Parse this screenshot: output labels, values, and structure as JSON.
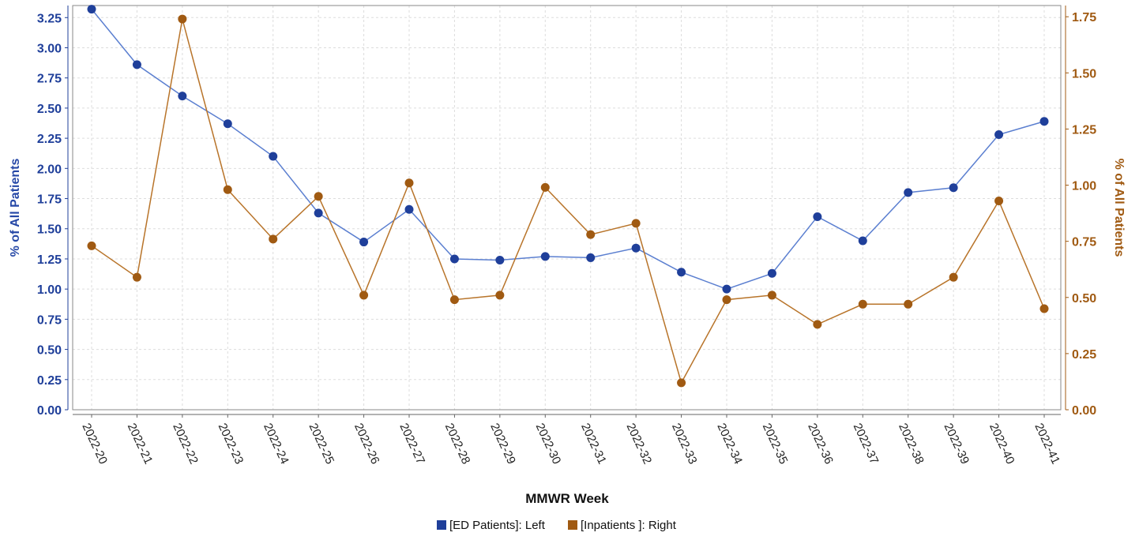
{
  "chart_data": {
    "type": "line",
    "xlabel": "MMWR Week",
    "ylabel_left": "% of All Patients",
    "ylabel_right": "% of All Patients",
    "categories": [
      "2022-20",
      "2022-21",
      "2022-22",
      "2022-23",
      "2022-24",
      "2022-25",
      "2022-26",
      "2022-27",
      "2022-28",
      "2022-29",
      "2022-30",
      "2022-31",
      "2022-32",
      "2022-33",
      "2022-34",
      "2022-35",
      "2022-36",
      "2022-37",
      "2022-38",
      "2022-39",
      "2022-40",
      "2022-41"
    ],
    "left_axis": {
      "ylim": [
        0,
        3.35
      ],
      "ticks": [
        "0.00",
        "0.25",
        "0.50",
        "0.75",
        "1.00",
        "1.25",
        "1.50",
        "1.75",
        "2.00",
        "2.25",
        "2.50",
        "2.75",
        "3.00",
        "3.25"
      ]
    },
    "right_axis": {
      "ylim": [
        0,
        1.8
      ],
      "ticks": [
        "0.00",
        "0.25",
        "0.50",
        "0.75",
        "1.00",
        "1.25",
        "1.50",
        "1.75"
      ]
    },
    "series": [
      {
        "name": "[ED Patients]: Left",
        "axis": "left",
        "color": "#1f3f9a",
        "line_color": "#5b7fd0",
        "values": [
          3.32,
          2.86,
          2.6,
          2.37,
          2.1,
          1.63,
          1.39,
          1.66,
          1.25,
          1.24,
          1.27,
          1.26,
          1.34,
          1.14,
          1.0,
          1.13,
          1.6,
          1.4,
          1.8,
          1.84,
          2.28,
          2.39
        ]
      },
      {
        "name": "[Inpatients ]: Right",
        "axis": "right",
        "color": "#a05a12",
        "line_color": "#b8742a",
        "values": [
          0.73,
          0.59,
          1.74,
          0.98,
          0.76,
          0.95,
          0.51,
          1.01,
          0.49,
          0.51,
          0.99,
          0.78,
          0.83,
          0.12,
          0.49,
          0.51,
          0.38,
          0.47,
          0.47,
          0.59,
          0.93,
          0.45
        ]
      }
    ],
    "grid": true,
    "legend_position": "bottom"
  },
  "legend": {
    "items": [
      {
        "label": "[ED Patients]: Left",
        "color": "#1f3f9a"
      },
      {
        "label": "[Inpatients ]: Right",
        "color": "#a05a12"
      }
    ]
  }
}
